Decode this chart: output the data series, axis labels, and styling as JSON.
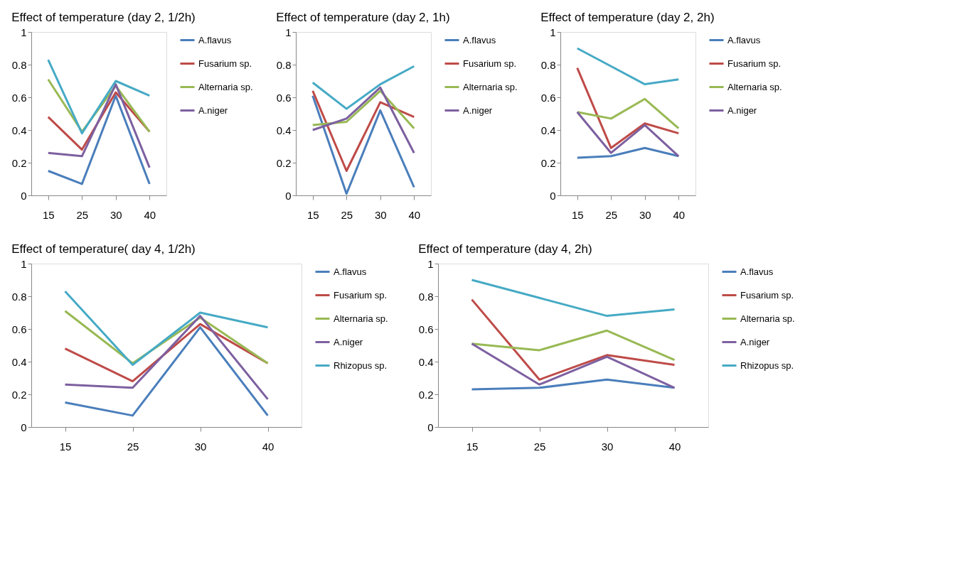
{
  "chart_data": [
    {
      "type": "line",
      "title": "Effect of temperature (day 2, 1/2h)",
      "categories": [
        "15",
        "25",
        "30",
        "40"
      ],
      "ylim": [
        0,
        1
      ],
      "yticks": [
        0,
        0.2,
        0.4,
        0.6,
        0.8,
        1
      ],
      "grid": false,
      "legend": "right",
      "series": [
        {
          "name": "A.flavus",
          "color": "#4a7ebb",
          "values": [
            0.15,
            0.07,
            0.61,
            0.07
          ]
        },
        {
          "name": "Fusarium sp.",
          "color": "#be4b48",
          "values": [
            0.48,
            0.28,
            0.63,
            0.39
          ]
        },
        {
          "name": "Alternaria sp.",
          "color": "#98b954",
          "values": [
            0.71,
            0.39,
            0.67,
            0.39
          ]
        },
        {
          "name": "A.niger",
          "color": "#7d60a0",
          "values": [
            0.26,
            0.24,
            0.68,
            0.17
          ]
        },
        {
          "color": "#46aac5",
          "values": [
            0.83,
            0.38,
            0.7,
            0.61
          ]
        }
      ]
    },
    {
      "type": "line",
      "title": "Effect of temperature (day 2, 1h)",
      "categories": [
        "15",
        "25",
        "30",
        "40"
      ],
      "ylim": [
        0,
        1
      ],
      "yticks": [
        0,
        0.2,
        0.4,
        0.6,
        0.8,
        1
      ],
      "grid": false,
      "legend": "right",
      "series": [
        {
          "name": "A.flavus",
          "color": "#4a7ebb",
          "values": [
            0.61,
            0.01,
            0.52,
            0.05
          ]
        },
        {
          "name": "Fusarium sp.",
          "color": "#be4b48",
          "values": [
            0.64,
            0.15,
            0.57,
            0.48
          ]
        },
        {
          "name": "Alternaria sp.",
          "color": "#98b954",
          "values": [
            0.43,
            0.45,
            0.64,
            0.41
          ]
        },
        {
          "name": "A.niger",
          "color": "#7d60a0",
          "values": [
            0.4,
            0.47,
            0.66,
            0.26
          ]
        },
        {
          "color": "#46aac5",
          "values": [
            0.69,
            0.53,
            0.68,
            0.79
          ]
        }
      ]
    },
    {
      "type": "line",
      "title": "Effect of temperature (day 2, 2h)",
      "categories": [
        "15",
        "25",
        "30",
        "40"
      ],
      "ylim": [
        0,
        1
      ],
      "yticks": [
        0,
        0.2,
        0.4,
        0.6,
        0.8,
        1
      ],
      "grid": false,
      "legend": "right",
      "series": [
        {
          "name": "A.flavus",
          "color": "#4a7ebb",
          "values": [
            0.23,
            0.24,
            0.29,
            0.24
          ]
        },
        {
          "name": "Fusarium sp.",
          "color": "#be4b48",
          "values": [
            0.78,
            0.29,
            0.44,
            0.38
          ]
        },
        {
          "name": "Alternaria sp.",
          "color": "#98b954",
          "values": [
            0.51,
            0.47,
            0.59,
            0.41
          ]
        },
        {
          "name": "A.niger",
          "color": "#7d60a0",
          "values": [
            0.51,
            0.26,
            0.43,
            0.24
          ]
        },
        {
          "color": "#46aac5",
          "values": [
            0.9,
            0.79,
            0.68,
            0.71
          ]
        }
      ]
    },
    {
      "type": "line",
      "title": "Effect of temperature( day 4, 1/2h)",
      "categories": [
        "15",
        "25",
        "30",
        "40"
      ],
      "ylim": [
        0,
        1
      ],
      "yticks": [
        0,
        0.2,
        0.4,
        0.6,
        0.8,
        1
      ],
      "grid": false,
      "legend": "right",
      "series": [
        {
          "name": "A.flavus",
          "color": "#4a7ebb",
          "values": [
            0.15,
            0.07,
            0.61,
            0.07
          ]
        },
        {
          "name": "Fusarium sp.",
          "color": "#be4b48",
          "values": [
            0.48,
            0.28,
            0.63,
            0.39
          ]
        },
        {
          "name": "Alternaria sp.",
          "color": "#98b954",
          "values": [
            0.71,
            0.39,
            0.67,
            0.39
          ]
        },
        {
          "name": "A.niger",
          "color": "#7d60a0",
          "values": [
            0.26,
            0.24,
            0.68,
            0.17
          ]
        },
        {
          "name": "Rhizopus sp.",
          "color": "#46aac5",
          "values": [
            0.83,
            0.38,
            0.7,
            0.61
          ]
        }
      ]
    },
    {
      "type": "line",
      "title": "Effect of temperature (day 4, 2h)",
      "categories": [
        "15",
        "25",
        "30",
        "40"
      ],
      "ylim": [
        0,
        1
      ],
      "yticks": [
        0,
        0.2,
        0.4,
        0.6,
        0.8,
        1
      ],
      "grid": false,
      "legend": "right",
      "series": [
        {
          "name": "A.flavus",
          "color": "#4a7ebb",
          "values": [
            0.23,
            0.24,
            0.29,
            0.24
          ]
        },
        {
          "name": "Fusarium sp.",
          "color": "#be4b48",
          "values": [
            0.78,
            0.29,
            0.44,
            0.38
          ]
        },
        {
          "name": "Alternaria sp.",
          "color": "#98b954",
          "values": [
            0.51,
            0.47,
            0.59,
            0.41
          ]
        },
        {
          "name": "A.niger",
          "color": "#7d60a0",
          "values": [
            0.51,
            0.26,
            0.43,
            0.24
          ]
        },
        {
          "name": "Rhizopus sp.",
          "color": "#46aac5",
          "values": [
            0.9,
            0.79,
            0.68,
            0.72
          ]
        }
      ]
    }
  ]
}
